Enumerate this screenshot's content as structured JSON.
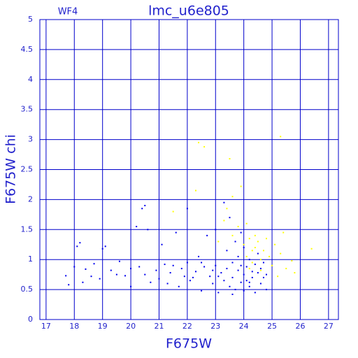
{
  "chart_data": {
    "type": "scatter",
    "title": "lmc_u6e805",
    "subtitle": "WF4",
    "x_label": "F675W",
    "y_label": "F675W chi",
    "xlim": [
      16.78,
      27.35
    ],
    "ylim": [
      0,
      5
    ],
    "xticks": [
      17,
      18,
      19,
      20,
      21,
      22,
      23,
      24,
      25,
      26,
      27
    ],
    "yticks": [
      0,
      0.5,
      1,
      1.5,
      2,
      2.5,
      3,
      3.5,
      4,
      4.5,
      5
    ],
    "grid": true,
    "grid_color": "#0000cc",
    "text_color": "#2222cc",
    "series": [
      {
        "color": "#ffff00",
        "x": [
          22.3,
          22.4,
          22.6,
          23.1,
          23.3,
          23.5,
          23.6,
          23.6,
          23.8,
          23.9,
          24.0,
          24.1,
          24.1,
          24.2,
          24.3,
          24.3,
          24.4,
          24.4,
          24.5,
          24.6,
          24.7,
          24.8,
          24.9,
          25.0,
          25.1,
          25.2,
          25.3,
          25.3,
          25.5,
          25.7,
          25.8,
          26.4,
          21.5,
          23.4,
          24.2,
          24.6,
          25.4
        ],
        "values": [
          2.15,
          2.95,
          2.88,
          1.3,
          1.65,
          2.68,
          2.05,
          1.4,
          1.55,
          2.22,
          1.25,
          1.6,
          1.05,
          1.35,
          1.15,
          0.95,
          1.4,
          1.2,
          1.3,
          1.0,
          1.15,
          1.35,
          1.05,
          0.9,
          1.25,
          0.72,
          3.05,
          1.1,
          0.85,
          0.98,
          0.78,
          1.18,
          1.8,
          1.85,
          0.85,
          0.82,
          1.45
        ]
      },
      {
        "color": "#0000ee",
        "x": [
          17.7,
          17.8,
          18.0,
          18.1,
          18.2,
          18.3,
          18.4,
          18.6,
          18.7,
          18.9,
          19.0,
          19.1,
          19.3,
          19.5,
          19.6,
          19.8,
          20.0,
          20.0,
          20.2,
          20.3,
          20.4,
          20.5,
          20.5,
          20.6,
          20.7,
          20.9,
          21.0,
          21.1,
          21.2,
          21.3,
          21.4,
          21.6,
          21.7,
          21.8,
          21.9,
          22.0,
          22.0,
          22.1,
          22.3,
          22.4,
          22.5,
          22.6,
          22.7,
          22.8,
          22.9,
          23.0,
          23.0,
          23.1,
          23.2,
          23.3,
          23.3,
          23.4,
          23.4,
          23.5,
          23.5,
          23.6,
          23.6,
          23.7,
          23.7,
          23.8,
          23.8,
          23.9,
          23.9,
          24.0,
          24.0,
          24.0,
          24.1,
          24.1,
          24.2,
          24.2,
          24.3,
          24.3,
          24.4,
          24.4,
          24.5,
          24.5,
          24.6,
          24.6,
          24.7,
          24.7,
          24.8,
          24.8,
          22.5,
          22.2,
          21.5,
          23.9,
          24.2,
          23.1,
          22.9,
          23.6
        ],
        "values": [
          0.73,
          0.58,
          0.88,
          1.22,
          1.28,
          0.62,
          0.84,
          0.72,
          0.93,
          0.68,
          1.18,
          1.22,
          0.82,
          0.75,
          0.97,
          0.73,
          0.85,
          0.55,
          1.55,
          0.88,
          1.85,
          1.9,
          0.75,
          1.5,
          0.62,
          0.82,
          0.68,
          1.25,
          0.92,
          0.6,
          0.78,
          1.45,
          0.55,
          0.85,
          0.72,
          1.85,
          0.95,
          0.65,
          0.8,
          1.05,
          0.48,
          0.88,
          1.4,
          0.72,
          0.6,
          1.5,
          0.9,
          0.45,
          0.78,
          1.95,
          0.65,
          1.15,
          0.85,
          0.55,
          1.7,
          0.95,
          0.7,
          1.3,
          0.5,
          0.82,
          1.05,
          0.62,
          0.9,
          0.75,
          1.2,
          0.48,
          0.88,
          0.65,
          1.0,
          0.55,
          0.8,
          0.7,
          0.92,
          0.45,
          0.78,
          1.1,
          0.6,
          0.85,
          0.7,
          0.95,
          0.5,
          0.75,
          0.95,
          0.7,
          0.9,
          1.45,
          0.62,
          0.72,
          0.82,
          0.42
        ]
      }
    ]
  }
}
